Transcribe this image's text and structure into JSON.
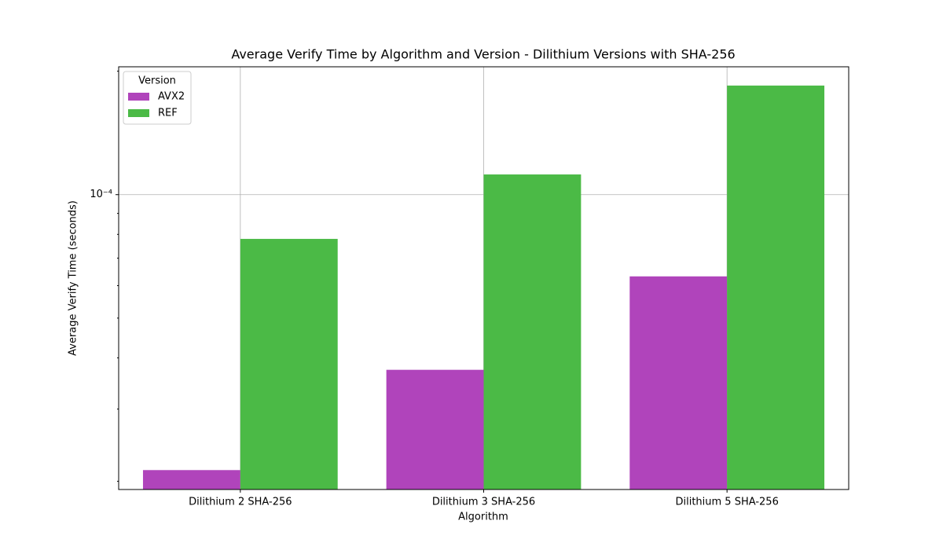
{
  "chart_data": {
    "type": "bar",
    "title": "Average Verify Time by Algorithm and Version - Dilithium Versions with SHA-256",
    "x_label": "Algorithm",
    "y_label": "Average Verify Time (seconds)",
    "categories": [
      "Dilithium 2 SHA-256",
      "Dilithium 3 SHA-256",
      "Dilithium 5 SHA-256"
    ],
    "series": [
      {
        "name": "AVX2",
        "color": "#b044bb",
        "values": [
          2.13e-05,
          3.74e-05,
          6.32e-05
        ]
      },
      {
        "name": "REF",
        "color": "#4bba46",
        "values": [
          7.8e-05,
          0.000112,
          0.0001845
        ]
      }
    ],
    "log_scale": true,
    "ylim": [
      1.91e-05,
      0.000205
    ],
    "yticks": [
      {
        "value": 0.0001,
        "label": "10⁻⁴"
      }
    ],
    "yminorticks": [
      2e-05,
      3e-05,
      4e-05,
      5e-05,
      6e-05,
      7e-05,
      8e-05,
      9e-05,
      0.0002
    ],
    "grid": true,
    "legend_title": "Version",
    "legend_position": "upper-left"
  }
}
